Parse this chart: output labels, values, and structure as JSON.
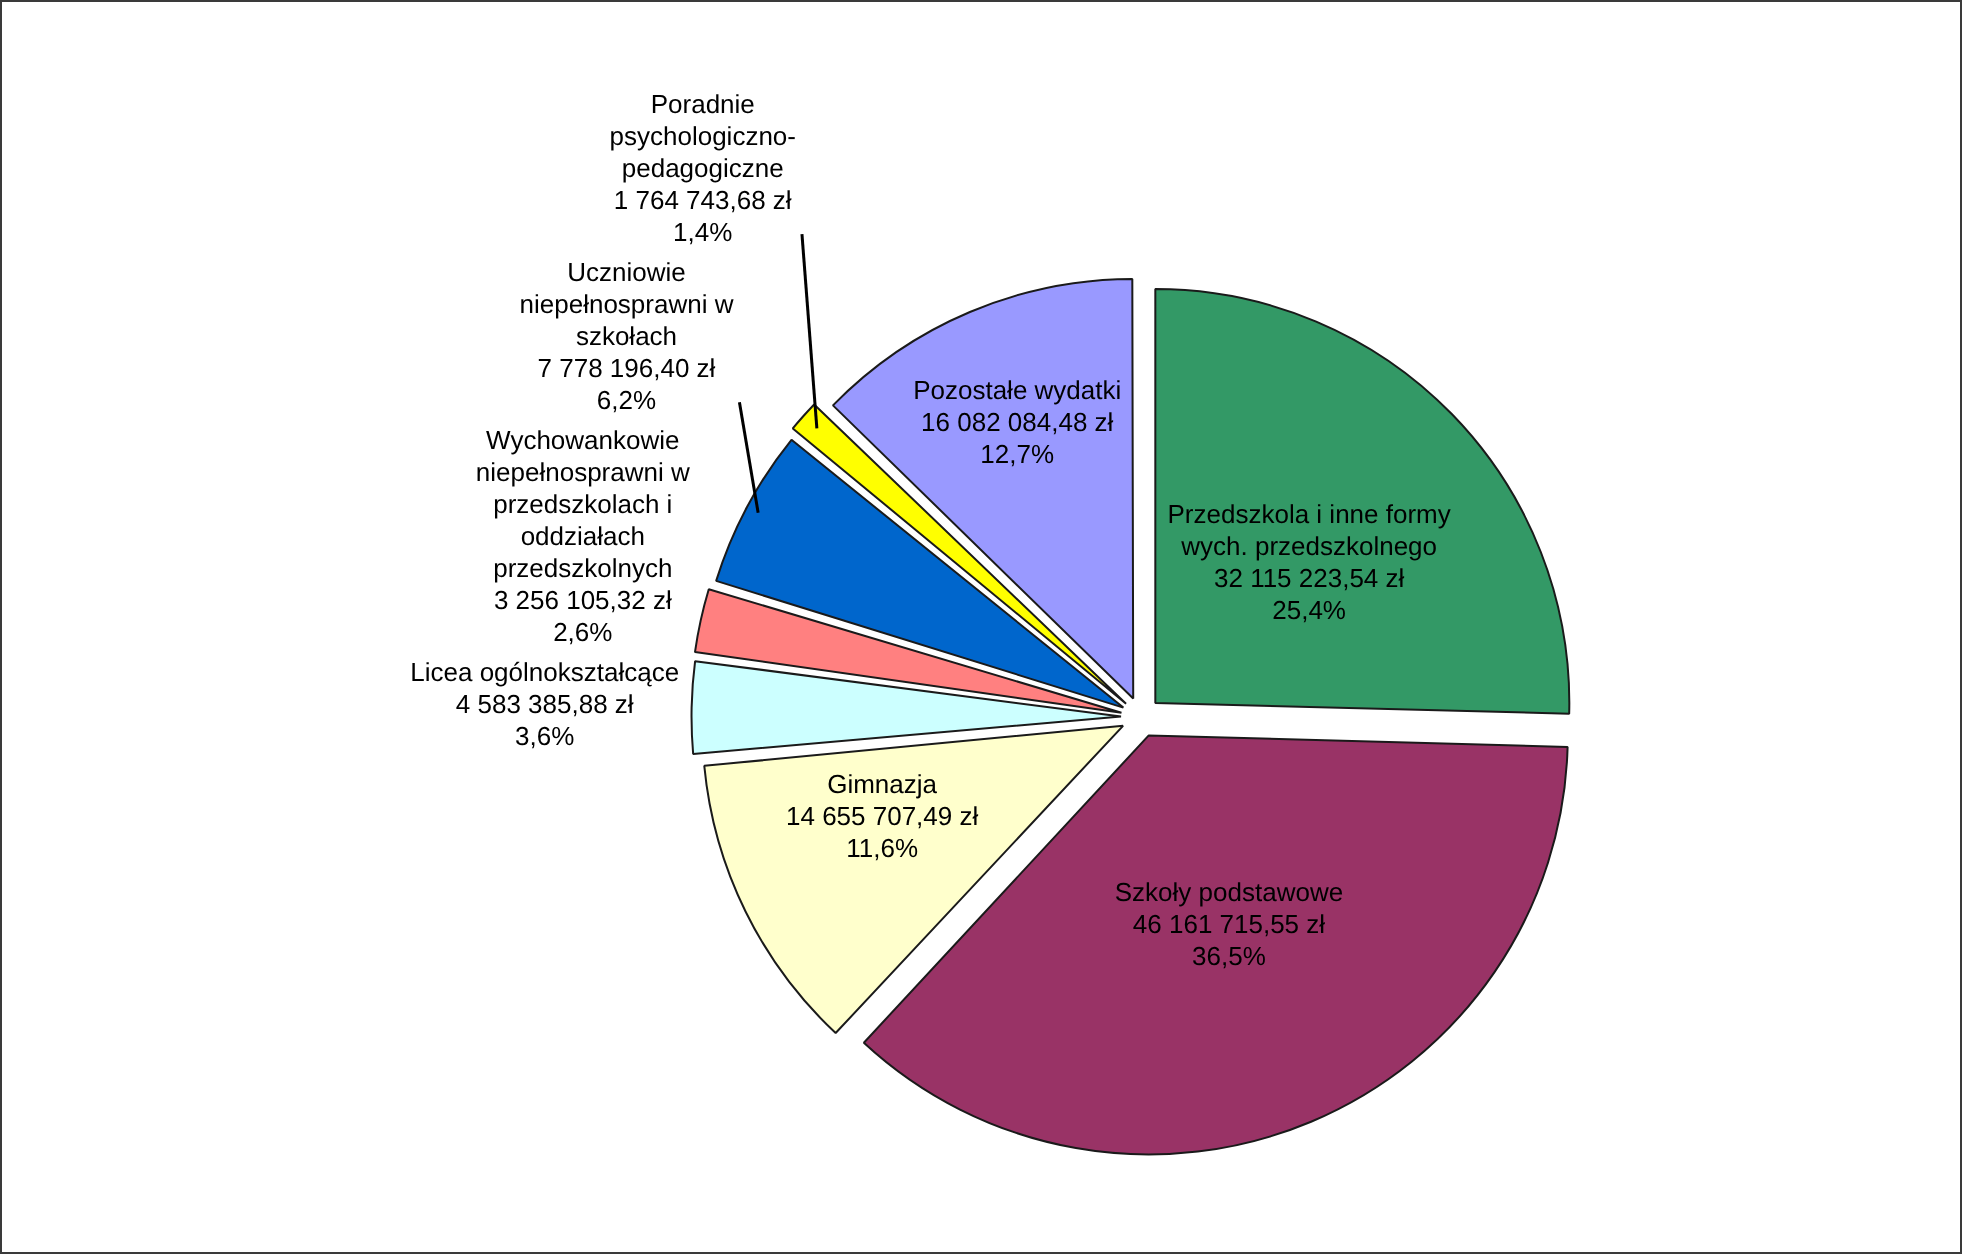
{
  "chart_data": {
    "type": "pie",
    "categories": [
      "Przedszkola i inne formy wych. przedszkolnego",
      "Szkoły podstawowe",
      "Gimnazja",
      "Licea ogólnokształcące",
      "Wychowankowie niepełnosprawni w przedszkolach i oddziałach przedszkolnych",
      "Uczniowie niepełnosprawni w szkołach",
      "Poradnie psychologiczno-pedagogiczne",
      "Pozostałe wydatki"
    ],
    "values": [
      32115223.54,
      46161715.55,
      14655707.49,
      4583385.88,
      3256105.32,
      7778196.4,
      1764743.68,
      16082084.48
    ],
    "value_labels": [
      "32 115 223,54 zł\n25,4%",
      "46 161 715,55 zł\n36,5%",
      "14 655 707,49 zł\n11,6%",
      "4 583 385,88 zł\n3,6%",
      "3 256 105,32 zł\n2,6%",
      "7 778 196,40 zł\n6,2%",
      "1 764 743,68 zł\n1,4%",
      "16 082 084,48 zł\n12,7%"
    ],
    "colors": [
      "#339966",
      "#993366",
      "#ffffcc",
      "#ccffff",
      "#ff8080",
      "#0066cc",
      "#ffff00",
      "#9999ff"
    ]
  }
}
